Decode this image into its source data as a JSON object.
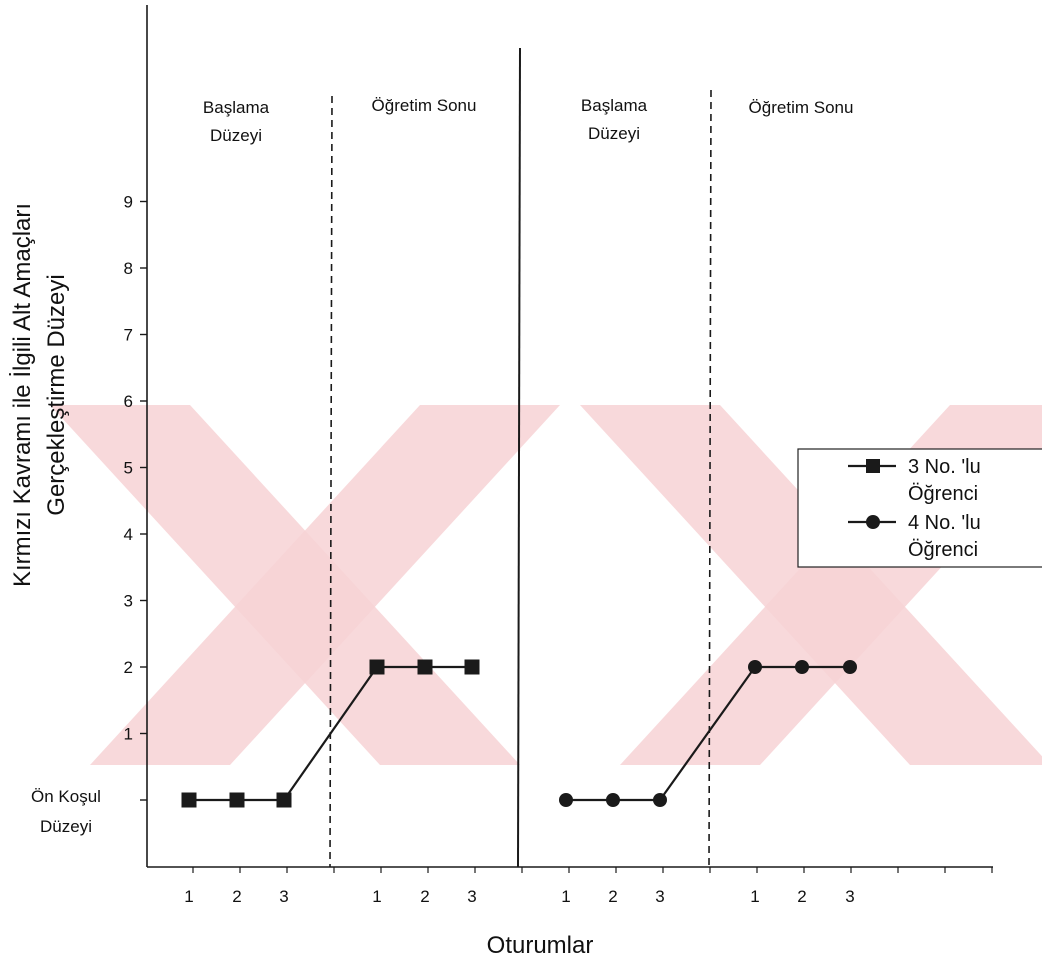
{
  "chart_data": {
    "type": "line",
    "title": "",
    "xlabel": "Oturumlar",
    "ylabel_line1": "Kırmızı Kavramı ile İlgili Alt Amaçları",
    "ylabel_line2": "Gerçekleştirme Düzeyi",
    "ylim": [
      -1,
      10
    ],
    "y_ticks": [
      1,
      2,
      3,
      4,
      5,
      6,
      7,
      8,
      9
    ],
    "y_baseline_label_line1": "Ön Koşul",
    "y_baseline_label_line2": "Düzeyi",
    "x_tick_labels": [
      "1",
      "2",
      "3",
      "1",
      "2",
      "3",
      "1",
      "2",
      "3",
      "1",
      "2",
      "3"
    ],
    "phases": [
      {
        "label_line1": "Başlama",
        "label_line2": "Düzeyi"
      },
      {
        "label_line1": "Öğretim Sonu",
        "label_line2": ""
      },
      {
        "label_line1": "Başlama",
        "label_line2": "Düzeyi"
      },
      {
        "label_line1": "Öğretim Sonu",
        "label_line2": ""
      }
    ],
    "series": [
      {
        "name_line1": "3 No. 'lu",
        "name_line2": "Öğrenci",
        "marker": "square",
        "values": [
          0,
          0,
          0,
          2,
          2,
          2
        ]
      },
      {
        "name_line1": "4 No. 'lu",
        "name_line2": "Öğrenci",
        "marker": "circle",
        "values": [
          0,
          0,
          0,
          2,
          2,
          2
        ]
      }
    ],
    "legend_position": "right",
    "grid": false,
    "colors": {
      "line": "#1a1a1a",
      "watermark": "#f7d2d5"
    }
  }
}
